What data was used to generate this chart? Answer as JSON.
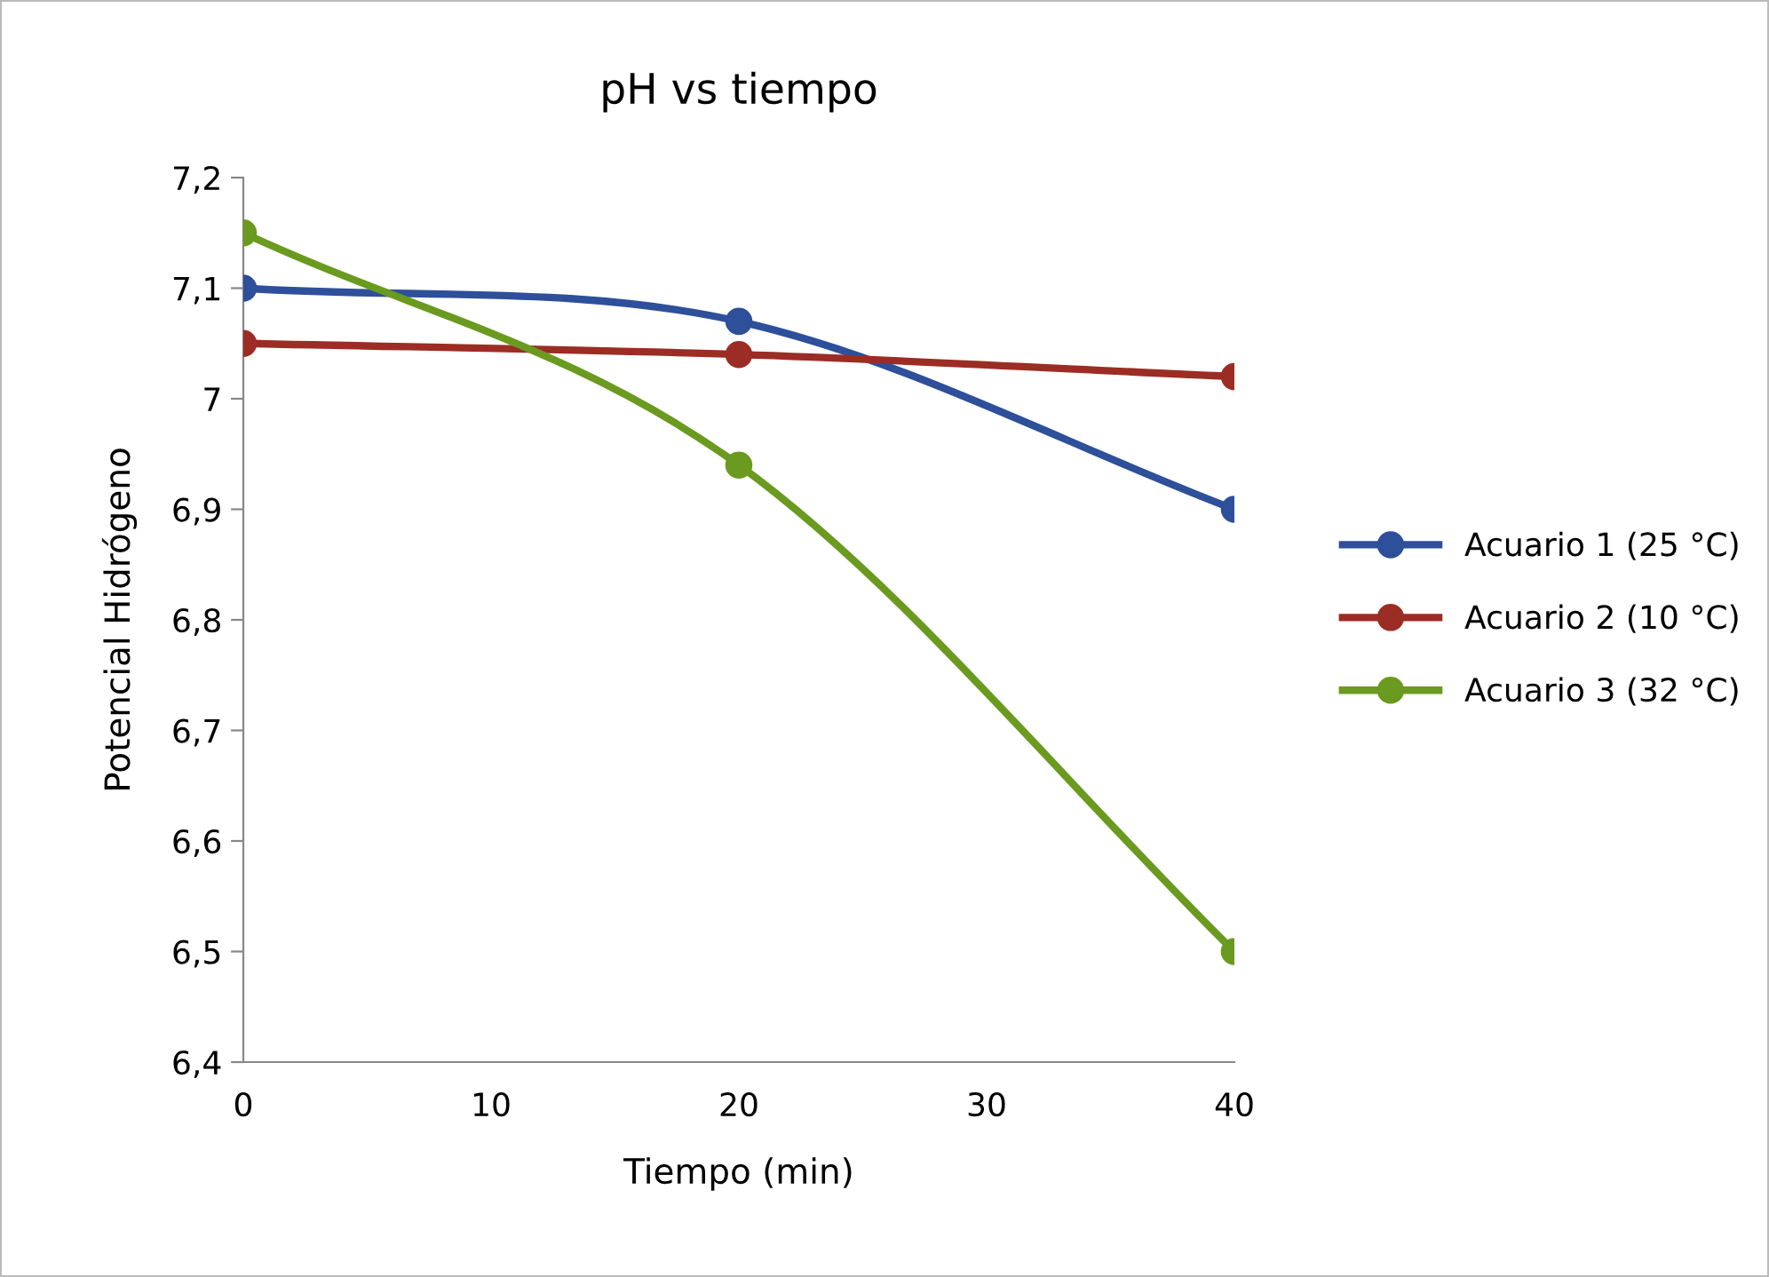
{
  "chart_data": {
    "type": "line",
    "title": "pH vs tiempo",
    "xlabel": "Tiempo (min)",
    "ylabel": "Potencial Hidrógeno",
    "x": [
      0,
      20,
      40
    ],
    "series": [
      {
        "name": "Acuario 1 (25 °C)",
        "color": "#2e4f9a",
        "values": [
          7.1,
          7.07,
          6.9
        ]
      },
      {
        "name": "Acuario 2 (10 °C)",
        "color": "#9b2d24",
        "values": [
          7.05,
          7.04,
          7.02
        ]
      },
      {
        "name": "Acuario 3 (32 °C)",
        "color": "#6a9a1f",
        "values": [
          7.15,
          6.94,
          6.5
        ]
      }
    ],
    "xlim": [
      0,
      40
    ],
    "xticks": [
      0,
      10,
      20,
      30,
      40
    ],
    "ylim": [
      6.4,
      7.2
    ],
    "yticks": [
      {
        "value": 6.4,
        "label": "6,4"
      },
      {
        "value": 6.5,
        "label": "6,5"
      },
      {
        "value": 6.6,
        "label": "6,6"
      },
      {
        "value": 6.7,
        "label": "6,7"
      },
      {
        "value": 6.8,
        "label": "6,8"
      },
      {
        "value": 6.9,
        "label": "6,9"
      },
      {
        "value": 7,
        "label": "7"
      },
      {
        "value": 7.1,
        "label": "7,1"
      },
      {
        "value": 7.2,
        "label": "7,2"
      }
    ],
    "grid": false,
    "legend": "right",
    "marker": "circle",
    "line_style": "solid"
  }
}
